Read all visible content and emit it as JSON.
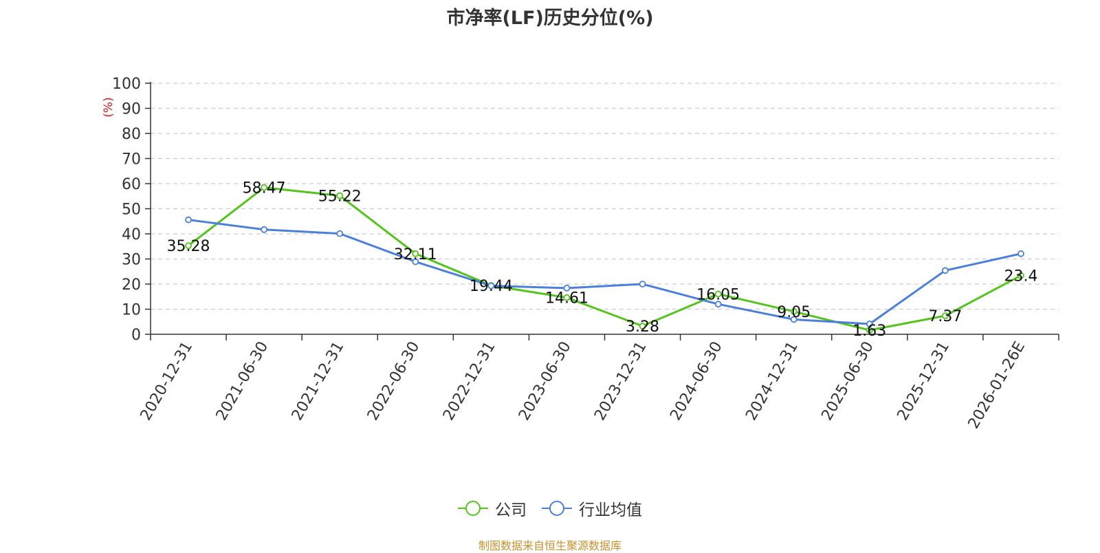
{
  "chart_data": {
    "type": "line",
    "title": "市净率(LF)历史分位(%)",
    "ylabel": "(%)",
    "xlabel": "",
    "ylim": [
      0,
      100
    ],
    "yticks": [
      0,
      10,
      20,
      30,
      40,
      50,
      60,
      70,
      80,
      90,
      100
    ],
    "categories": [
      "2020-12-31",
      "2021-06-30",
      "2021-12-31",
      "2022-06-30",
      "2022-12-31",
      "2023-06-30",
      "2023-12-31",
      "2024-06-30",
      "2024-12-31",
      "2025-06-30",
      "2025-12-31",
      "2026-01-26E"
    ],
    "series": [
      {
        "name": "公司",
        "color": "#52c41a",
        "values": [
          35.28,
          58.47,
          55.22,
          32.11,
          19.44,
          14.61,
          3.28,
          16.05,
          9.05,
          1.63,
          7.37,
          23.4
        ],
        "labels": [
          "35.28",
          "58.47",
          "55.22",
          "32.11",
          "19.44",
          "14.61",
          "3.28",
          "16.05",
          "9.05",
          "1.63",
          "7.37",
          "23.4"
        ]
      },
      {
        "name": "行业均值",
        "color": "#4a7fdc",
        "values": [
          45.6,
          41.7,
          40.1,
          28.9,
          19.3,
          18.4,
          20.0,
          12.0,
          5.9,
          4.1,
          25.4,
          32.1
        ]
      }
    ],
    "grid": true,
    "legend_position": "bottom-center",
    "source": "制图数据来自恒生聚源数据库",
    "colors": {
      "axis": "#333333",
      "grid": "#cccccc",
      "ylabel": "#e01010",
      "source": "#c8912f"
    }
  }
}
